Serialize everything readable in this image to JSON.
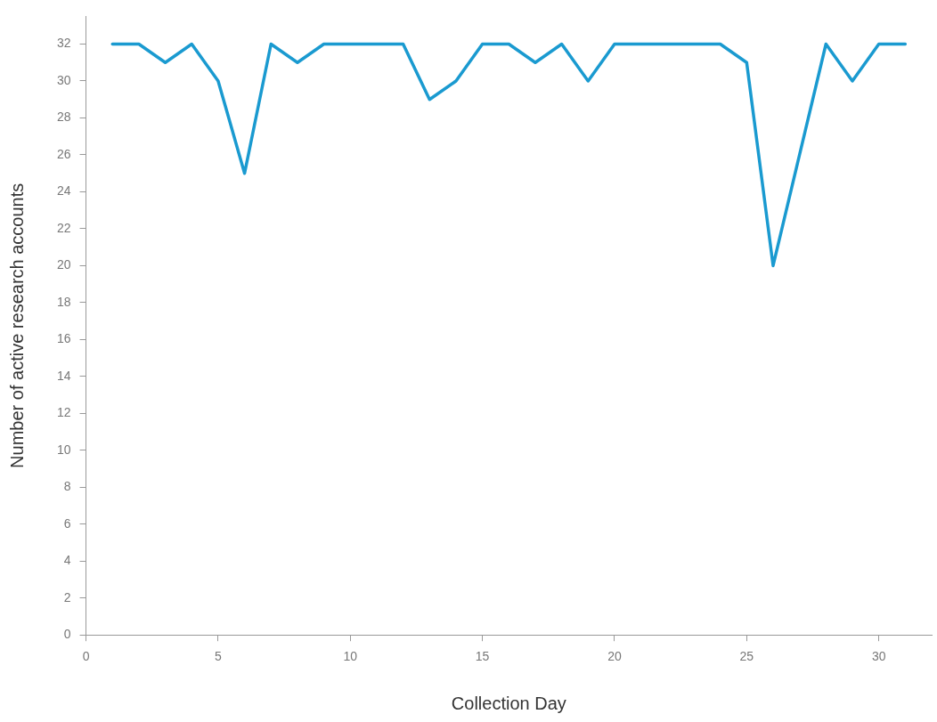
{
  "chart_data": {
    "type": "line",
    "xlabel": "Collection Day",
    "ylabel": "Number of active research accounts",
    "x": [
      1,
      2,
      3,
      4,
      5,
      6,
      7,
      8,
      9,
      10,
      11,
      12,
      13,
      14,
      15,
      16,
      17,
      18,
      19,
      20,
      21,
      22,
      23,
      24,
      25,
      26,
      27,
      28,
      29,
      30,
      31
    ],
    "series": [
      {
        "color": "#1a9ad0",
        "values": [
          32,
          32,
          31,
          32,
          30,
          25,
          32,
          31,
          32,
          32,
          32,
          32,
          29,
          30,
          32,
          32,
          31,
          32,
          30,
          32,
          32,
          32,
          32,
          32,
          31,
          20,
          26,
          32,
          30,
          32,
          32
        ]
      }
    ],
    "xlim": [
      0,
      32
    ],
    "xticks": [
      0,
      5,
      10,
      15,
      20,
      25,
      30
    ],
    "ylim": [
      0,
      33.5
    ],
    "yticks": [
      0,
      2,
      4,
      6,
      8,
      10,
      12,
      14,
      16,
      18,
      20,
      22,
      24,
      26,
      28,
      30,
      32
    ],
    "grid": false,
    "legend": false,
    "marker": "none",
    "line_style": "solid"
  }
}
